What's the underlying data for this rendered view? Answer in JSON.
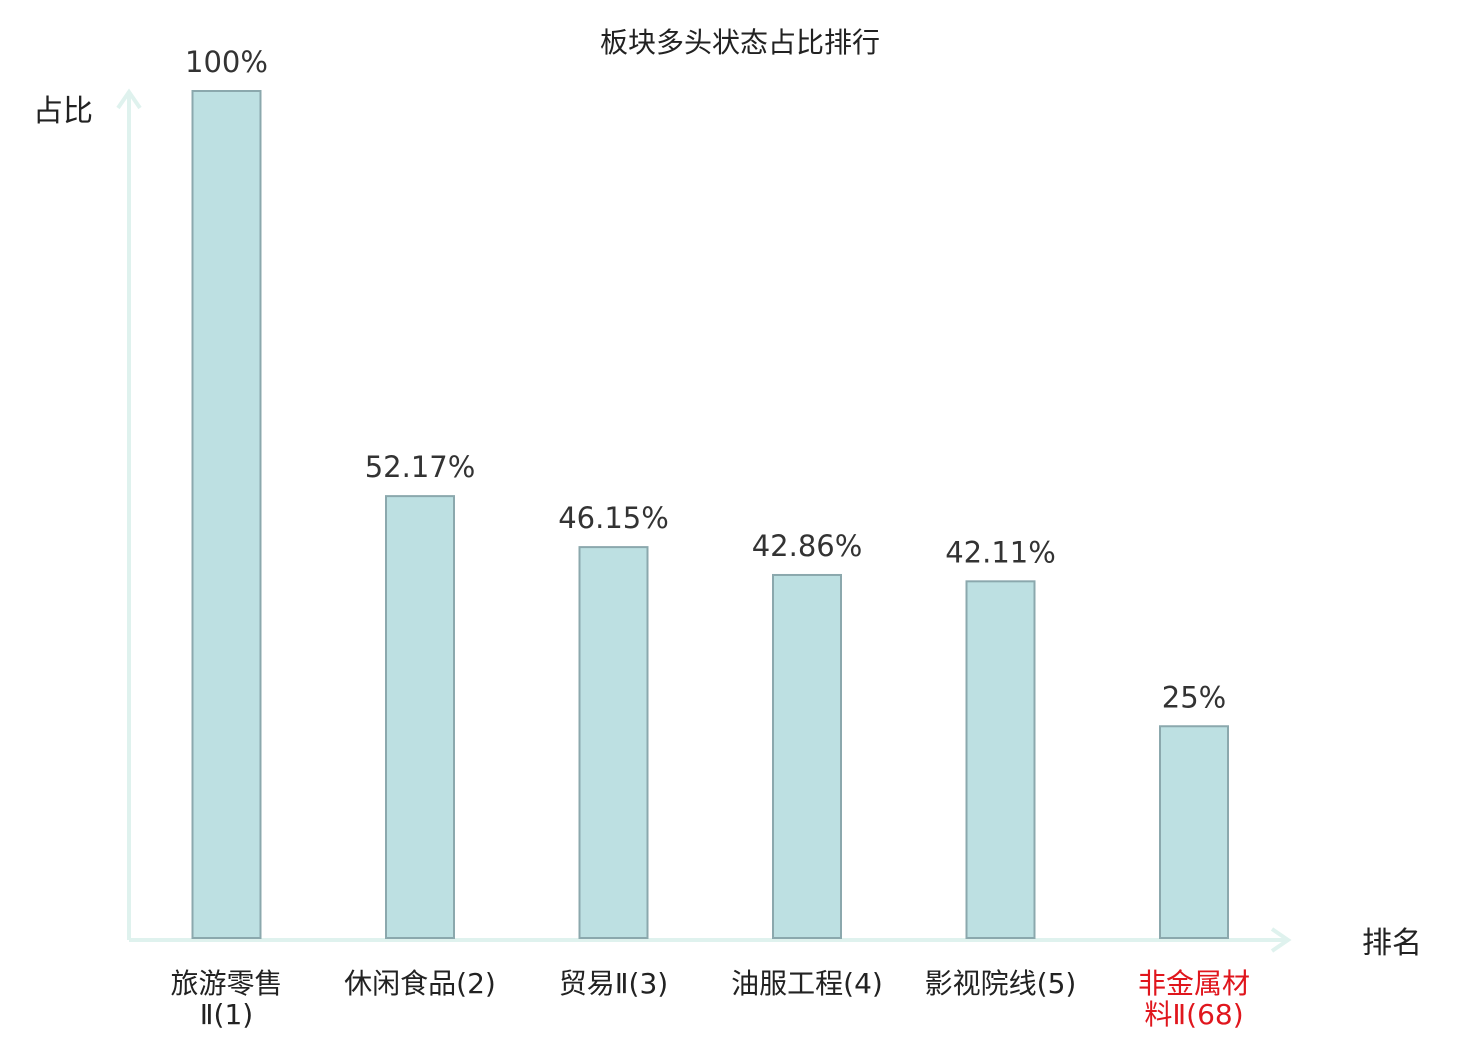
{
  "chart_data": {
    "type": "bar",
    "title": "板块多头状态占比排行",
    "ylabel": "占比",
    "xlabel": "排名",
    "categories": [
      {
        "lines": [
          "旅游零售",
          "Ⅱ(1)"
        ],
        "highlight": false
      },
      {
        "lines": [
          "休闲食品(2)"
        ],
        "highlight": false
      },
      {
        "lines": [
          "贸易Ⅱ(3)"
        ],
        "highlight": false
      },
      {
        "lines": [
          "油服工程(4)"
        ],
        "highlight": false
      },
      {
        "lines": [
          "影视院线(5)"
        ],
        "highlight": false
      },
      {
        "lines": [
          "非金属材",
          "料Ⅱ(68)"
        ],
        "highlight": true
      }
    ],
    "values": [
      100,
      52.17,
      46.15,
      42.86,
      42.11,
      25
    ],
    "value_labels": [
      "100%",
      "52.17%",
      "46.15%",
      "42.86%",
      "42.11%",
      "25%"
    ],
    "ylim": [
      0,
      100
    ],
    "grid": false,
    "colors": {
      "bar_fill": "#bde0e2",
      "bar_stroke": "#8ba8ad",
      "axis": "#dff2ee",
      "label": "#222222",
      "highlight": "#e0161d"
    }
  }
}
